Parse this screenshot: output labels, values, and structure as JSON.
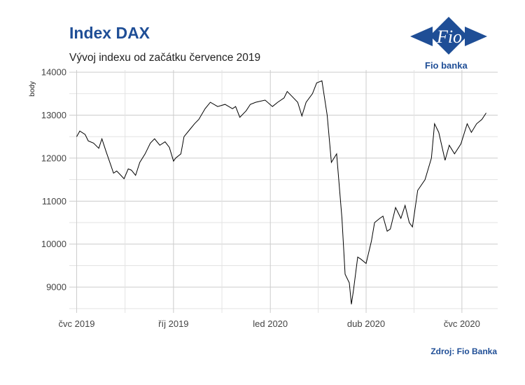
{
  "header": {
    "title": "Index DAX",
    "subtitle": "Vývoj indexu od začátku července 2019"
  },
  "brand": {
    "logo_text": "Fio",
    "name": "Fio banka",
    "color": "#1f4e96"
  },
  "footer": {
    "source": "Zdroj: Fio Banka"
  },
  "chart_data": {
    "type": "line",
    "title": "Index DAX",
    "subtitle": "Vývoj indexu od začátku července 2019",
    "xlabel": "",
    "ylabel": "body",
    "ylim": [
      8400,
      14050
    ],
    "y_ticks": [
      9000,
      10000,
      11000,
      12000,
      13000,
      14000
    ],
    "x_ticks": [
      {
        "label": "čvc 2019",
        "date": "2019-07-01"
      },
      {
        "label": "říj 2019",
        "date": "2019-10-01"
      },
      {
        "label": "led 2020",
        "date": "2020-01-01"
      },
      {
        "label": "dub 2020",
        "date": "2020-04-01"
      },
      {
        "label": "čvc 2020",
        "date": "2020-07-01"
      }
    ],
    "x_range": [
      "2019-06-24",
      "2020-08-04"
    ],
    "grid": true,
    "line_color": "#000000",
    "series": [
      {
        "x": [
          "2019-07-01",
          "2019-07-04",
          "2019-07-09",
          "2019-07-12",
          "2019-07-17",
          "2019-07-22",
          "2019-07-25",
          "2019-07-29",
          "2019-08-02",
          "2019-08-05",
          "2019-08-08",
          "2019-08-12",
          "2019-08-15",
          "2019-08-19",
          "2019-08-22",
          "2019-08-26",
          "2019-08-30",
          "2019-09-04",
          "2019-09-09",
          "2019-09-13",
          "2019-09-18",
          "2019-09-23",
          "2019-09-27",
          "2019-10-01",
          "2019-10-03",
          "2019-10-08",
          "2019-10-11",
          "2019-10-16",
          "2019-10-21",
          "2019-10-25",
          "2019-10-31",
          "2019-11-05",
          "2019-11-12",
          "2019-11-19",
          "2019-11-26",
          "2019-11-29",
          "2019-12-03",
          "2019-12-09",
          "2019-12-13",
          "2019-12-18",
          "2019-12-27",
          "2020-01-03",
          "2020-01-08",
          "2020-01-14",
          "2020-01-17",
          "2020-01-21",
          "2020-01-27",
          "2020-01-31",
          "2020-02-04",
          "2020-02-10",
          "2020-02-14",
          "2020-02-19",
          "2020-02-24",
          "2020-02-28",
          "2020-03-04",
          "2020-03-09",
          "2020-03-12",
          "2020-03-16",
          "2020-03-18",
          "2020-03-20",
          "2020-03-24",
          "2020-03-27",
          "2020-04-01",
          "2020-04-06",
          "2020-04-09",
          "2020-04-14",
          "2020-04-17",
          "2020-04-21",
          "2020-04-24",
          "2020-04-29",
          "2020-05-04",
          "2020-05-08",
          "2020-05-12",
          "2020-05-15",
          "2020-05-20",
          "2020-05-27",
          "2020-06-02",
          "2020-06-05",
          "2020-06-09",
          "2020-06-15",
          "2020-06-19",
          "2020-06-24",
          "2020-06-30",
          "2020-07-06",
          "2020-07-10",
          "2020-07-15",
          "2020-07-20",
          "2020-07-24"
        ],
        "y": [
          12500,
          12630,
          12550,
          12400,
          12350,
          12230,
          12450,
          12150,
          11870,
          11650,
          11700,
          11600,
          11520,
          11750,
          11720,
          11600,
          11900,
          12100,
          12350,
          12450,
          12300,
          12380,
          12250,
          11930,
          12000,
          12100,
          12500,
          12650,
          12800,
          12900,
          13150,
          13300,
          13200,
          13250,
          13150,
          13200,
          12950,
          13100,
          13250,
          13300,
          13350,
          13200,
          13300,
          13400,
          13550,
          13450,
          13300,
          12980,
          13300,
          13500,
          13750,
          13800,
          13000,
          11900,
          12100,
          10600,
          9300,
          9100,
          8600,
          8930,
          9700,
          9650,
          9550,
          10070,
          10500,
          10600,
          10650,
          10300,
          10350,
          10850,
          10600,
          10900,
          10500,
          10400,
          11250,
          11500,
          12000,
          12800,
          12600,
          11950,
          12300,
          12100,
          12330,
          12800,
          12600,
          12800,
          12900,
          13050
        ]
      }
    ]
  }
}
